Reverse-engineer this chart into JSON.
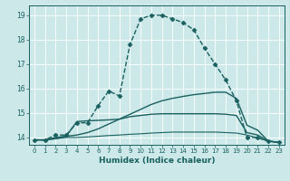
{
  "xlabel": "Humidex (Indice chaleur)",
  "xlim": [
    -0.5,
    23.5
  ],
  "ylim": [
    13.7,
    19.4
  ],
  "xticks": [
    0,
    1,
    2,
    3,
    4,
    5,
    6,
    7,
    8,
    9,
    10,
    11,
    12,
    13,
    14,
    15,
    16,
    17,
    18,
    19,
    20,
    21,
    22,
    23
  ],
  "yticks": [
    14,
    15,
    16,
    17,
    18,
    19
  ],
  "bg_color": "#cce8e8",
  "line_color": "#1a6060",
  "grid_color": "#ffffff",
  "lines": [
    {
      "x": [
        0,
        1,
        2,
        3,
        4,
        5,
        6,
        7,
        8,
        9,
        10,
        11,
        12,
        13,
        14,
        15,
        16,
        17,
        18,
        19,
        20,
        21,
        22,
        23
      ],
      "y": [
        13.9,
        13.9,
        14.1,
        14.1,
        14.6,
        14.6,
        15.3,
        15.9,
        15.7,
        17.8,
        18.85,
        19.0,
        19.0,
        18.85,
        18.7,
        18.4,
        17.65,
        17.0,
        16.35,
        15.5,
        14.0,
        14.0,
        13.85,
        13.8
      ],
      "marker": "D",
      "ms": 2.5,
      "lw": 1.0,
      "linestyle": "--"
    },
    {
      "x": [
        0,
        1,
        2,
        3,
        4,
        5,
        6,
        7,
        8,
        9,
        10,
        11,
        12,
        13,
        14,
        15,
        16,
        17,
        18,
        19,
        20,
        21,
        22,
        23
      ],
      "y": [
        13.9,
        13.9,
        14.0,
        14.05,
        14.1,
        14.2,
        14.35,
        14.55,
        14.75,
        14.95,
        15.15,
        15.35,
        15.5,
        15.6,
        15.68,
        15.75,
        15.8,
        15.85,
        15.85,
        15.6,
        14.5,
        14.3,
        13.85,
        13.8
      ],
      "marker": null,
      "ms": 0,
      "lw": 1.0,
      "linestyle": "-"
    },
    {
      "x": [
        0,
        1,
        2,
        3,
        4,
        5,
        6,
        7,
        8,
        9,
        10,
        11,
        12,
        13,
        14,
        15,
        16,
        17,
        18,
        19,
        20,
        21,
        22,
        23
      ],
      "y": [
        13.9,
        13.9,
        13.95,
        14.05,
        14.65,
        14.68,
        14.7,
        14.72,
        14.75,
        14.85,
        14.9,
        14.95,
        14.97,
        14.97,
        14.97,
        14.97,
        14.97,
        14.97,
        14.95,
        14.9,
        14.2,
        14.1,
        13.85,
        13.8
      ],
      "marker": null,
      "ms": 0,
      "lw": 1.0,
      "linestyle": "-"
    },
    {
      "x": [
        0,
        1,
        2,
        3,
        4,
        5,
        6,
        7,
        8,
        9,
        10,
        11,
        12,
        13,
        14,
        15,
        16,
        17,
        18,
        19,
        20,
        21,
        22,
        23
      ],
      "y": [
        13.9,
        13.9,
        13.95,
        14.0,
        14.0,
        14.02,
        14.05,
        14.08,
        14.1,
        14.13,
        14.15,
        14.18,
        14.2,
        14.22,
        14.22,
        14.22,
        14.22,
        14.22,
        14.2,
        14.18,
        14.1,
        13.98,
        13.85,
        13.8
      ],
      "marker": null,
      "ms": 0,
      "lw": 0.8,
      "linestyle": "-"
    }
  ]
}
